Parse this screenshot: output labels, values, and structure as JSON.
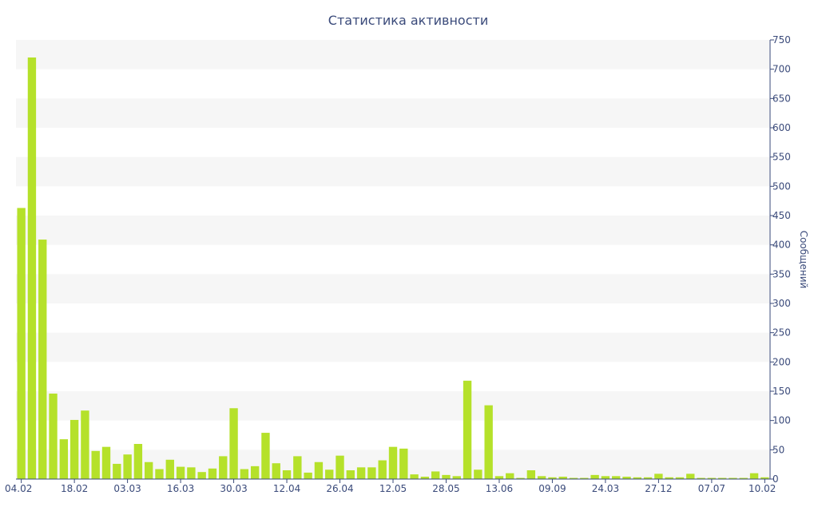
{
  "chart_data": {
    "type": "bar",
    "title": "Статистика активности",
    "xlabel": "",
    "ylabel": "Сообщений",
    "ylim": [
      0,
      750
    ],
    "y_ticks": [
      0,
      50,
      100,
      150,
      200,
      250,
      300,
      350,
      400,
      450,
      500,
      550,
      600,
      650,
      700,
      750
    ],
    "grid": "alternating horizontal bands",
    "y_axis_position": "right",
    "bar_color": "#b5e12a",
    "band_color": "#f6f6f6",
    "axis_color": "#3a4a7a",
    "x_tick_labels": [
      {
        "index": 0,
        "label": "04.02"
      },
      {
        "index": 5,
        "label": "18.02"
      },
      {
        "index": 10,
        "label": "03.03"
      },
      {
        "index": 15,
        "label": "16.03"
      },
      {
        "index": 20,
        "label": "30.03"
      },
      {
        "index": 25,
        "label": "12.04"
      },
      {
        "index": 30,
        "label": "26.04"
      },
      {
        "index": 35,
        "label": "12.05"
      },
      {
        "index": 40,
        "label": "28.05"
      },
      {
        "index": 45,
        "label": "13.06"
      },
      {
        "index": 50,
        "label": "09.09"
      },
      {
        "index": 55,
        "label": "24.03"
      },
      {
        "index": 60,
        "label": "27.12"
      },
      {
        "index": 65,
        "label": "07.07"
      },
      {
        "index": 70,
        "label": "10.02"
      }
    ],
    "values": [
      463,
      720,
      409,
      146,
      68,
      101,
      117,
      48,
      55,
      26,
      42,
      60,
      29,
      17,
      33,
      21,
      20,
      12,
      18,
      39,
      121,
      17,
      22,
      79,
      27,
      15,
      39,
      11,
      29,
      16,
      40,
      15,
      20,
      20,
      32,
      55,
      52,
      8,
      4,
      13,
      7,
      5,
      168,
      16,
      126,
      5,
      10,
      2,
      15,
      5,
      3,
      4,
      2,
      2,
      7,
      5,
      5,
      4,
      3,
      3,
      9,
      3,
      3,
      9,
      2,
      2,
      2,
      2,
      2,
      10,
      3
    ]
  }
}
